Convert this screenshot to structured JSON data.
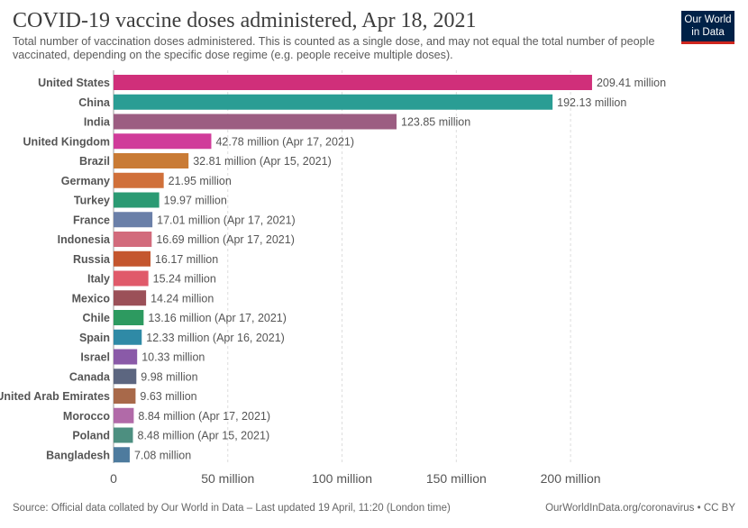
{
  "header": {
    "title": "COVID-19 vaccine doses administered, Apr 18, 2021",
    "subtitle": "Total number of vaccination doses administered. This is counted as a single dose, and may not equal the total number of people vaccinated, depending on the specific dose regime (e.g. people receive multiple doses).",
    "logo_line1": "Our World",
    "logo_line2": "in Data"
  },
  "footer": {
    "source": "Source: Official data collated by Our World in Data – Last updated 19 April, 11:20 (London time)",
    "credit": "OurWorldInData.org/coronavirus • CC BY"
  },
  "colors": {
    "logo_bg": "#002147",
    "logo_accent": "#ce261e",
    "grid": "#dddddd"
  },
  "chart_data": {
    "type": "bar",
    "orientation": "horizontal",
    "title": "COVID-19 vaccine doses administered, Apr 18, 2021",
    "xlim": [
      0,
      220
    ],
    "x_ticks": [
      0,
      50,
      100,
      150,
      200
    ],
    "x_tick_labels": [
      "0",
      "50 million",
      "100 million",
      "150 million",
      "200 million"
    ],
    "grid": "vertical dashed",
    "categories": [
      "United States",
      "China",
      "India",
      "United Kingdom",
      "Brazil",
      "Germany",
      "Turkey",
      "France",
      "Indonesia",
      "Russia",
      "Italy",
      "Mexico",
      "Chile",
      "Spain",
      "Israel",
      "Canada",
      "United Arab Emirates",
      "Morocco",
      "Poland",
      "Bangladesh"
    ],
    "values": [
      209.41,
      192.13,
      123.85,
      42.78,
      32.81,
      21.95,
      19.97,
      17.01,
      16.69,
      16.17,
      15.24,
      14.24,
      13.16,
      12.33,
      10.33,
      9.98,
      9.63,
      8.84,
      8.48,
      7.08
    ],
    "value_labels": [
      "209.41 million",
      "192.13 million",
      "123.85 million",
      "42.78 million (Apr 17, 2021)",
      "32.81 million (Apr 15, 2021)",
      "21.95 million",
      "19.97 million",
      "17.01 million (Apr 17, 2021)",
      "16.69 million (Apr 17, 2021)",
      "16.17 million",
      "15.24 million",
      "14.24 million",
      "13.16 million (Apr 17, 2021)",
      "12.33 million (Apr 16, 2021)",
      "10.33 million",
      "9.98 million",
      "9.63 million",
      "8.84 million (Apr 17, 2021)",
      "8.48 million (Apr 15, 2021)",
      "7.08 million"
    ],
    "colors": [
      "#d02f7a",
      "#2a9d94",
      "#9c5d82",
      "#d03c9a",
      "#c97b35",
      "#d0703a",
      "#2b9a73",
      "#6a7fa8",
      "#d26b7c",
      "#c4562e",
      "#e05a6a",
      "#9b5058",
      "#2d9a60",
      "#2f8aa6",
      "#8a5aa8",
      "#5c6680",
      "#a8694a",
      "#b16aa8",
      "#4d8f80",
      "#4e7b9e"
    ]
  }
}
